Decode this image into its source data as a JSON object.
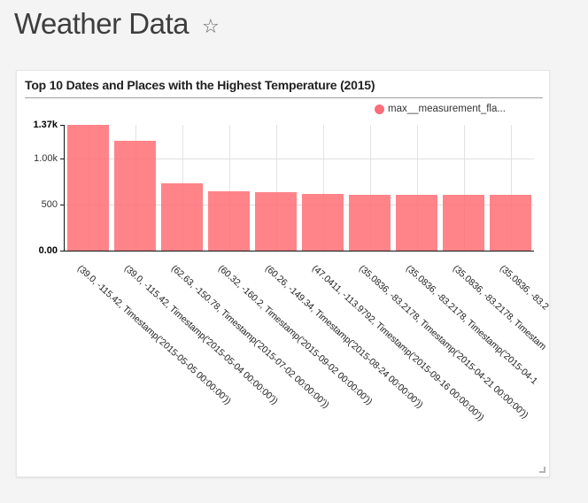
{
  "page": {
    "title": "Weather Data",
    "star_icon": "☆"
  },
  "card": {
    "title": "Top 10 Dates and Places with the Highest Temperature (2015)",
    "legend": {
      "label": "max__measurement_fla...",
      "marker_color": "#fa6d79"
    }
  },
  "chart_data": {
    "type": "bar",
    "title": "Top 10 Dates and Places with the Highest Temperature (2015)",
    "series_name": "max__measurement_fla...",
    "categories": [
      "(39.0, -115.42, Timestamp('2015-05-05 00:00:00'))",
      "(39.0, -115.42, Timestamp('2015-05-04 00:00:00'))",
      "(62.63, -150.78, Timestamp('2015-07-02 00:00:00'))",
      "(60.32, -160.2, Timestamp('2015-09-02 00:00:00'))",
      "(60.26, -149.34, Timestamp('2015-08-24 00:00:00'))",
      "(47.0411, -113.9792, Timestamp('2015-09-16 00:00:00'))",
      "(35.0836, -83.2178, Timestamp('2015-04-21 00:00:00'))",
      "(35.0836, -83.2178, Timestamp('2015-04-1",
      "(35.0836, -83.2178, Timestam",
      "(35.0836, -83.2"
    ],
    "values": [
      1370,
      1200,
      736,
      642,
      638,
      614,
      611,
      610,
      608,
      606
    ],
    "xlabel": "",
    "ylabel": "",
    "ylim": [
      0,
      1370
    ],
    "yticks": {
      "values": [
        0,
        500,
        1000,
        1370
      ],
      "labels": [
        "0.00",
        "500",
        "1.00k",
        "1.37k"
      ],
      "bold": [
        true,
        false,
        false,
        true
      ]
    },
    "grid": true,
    "legend_position": "top-right",
    "bar_color": "rgba(255,110,117,0.85)",
    "grid_color": "#e0e0e0",
    "axis_color": "#111111"
  }
}
